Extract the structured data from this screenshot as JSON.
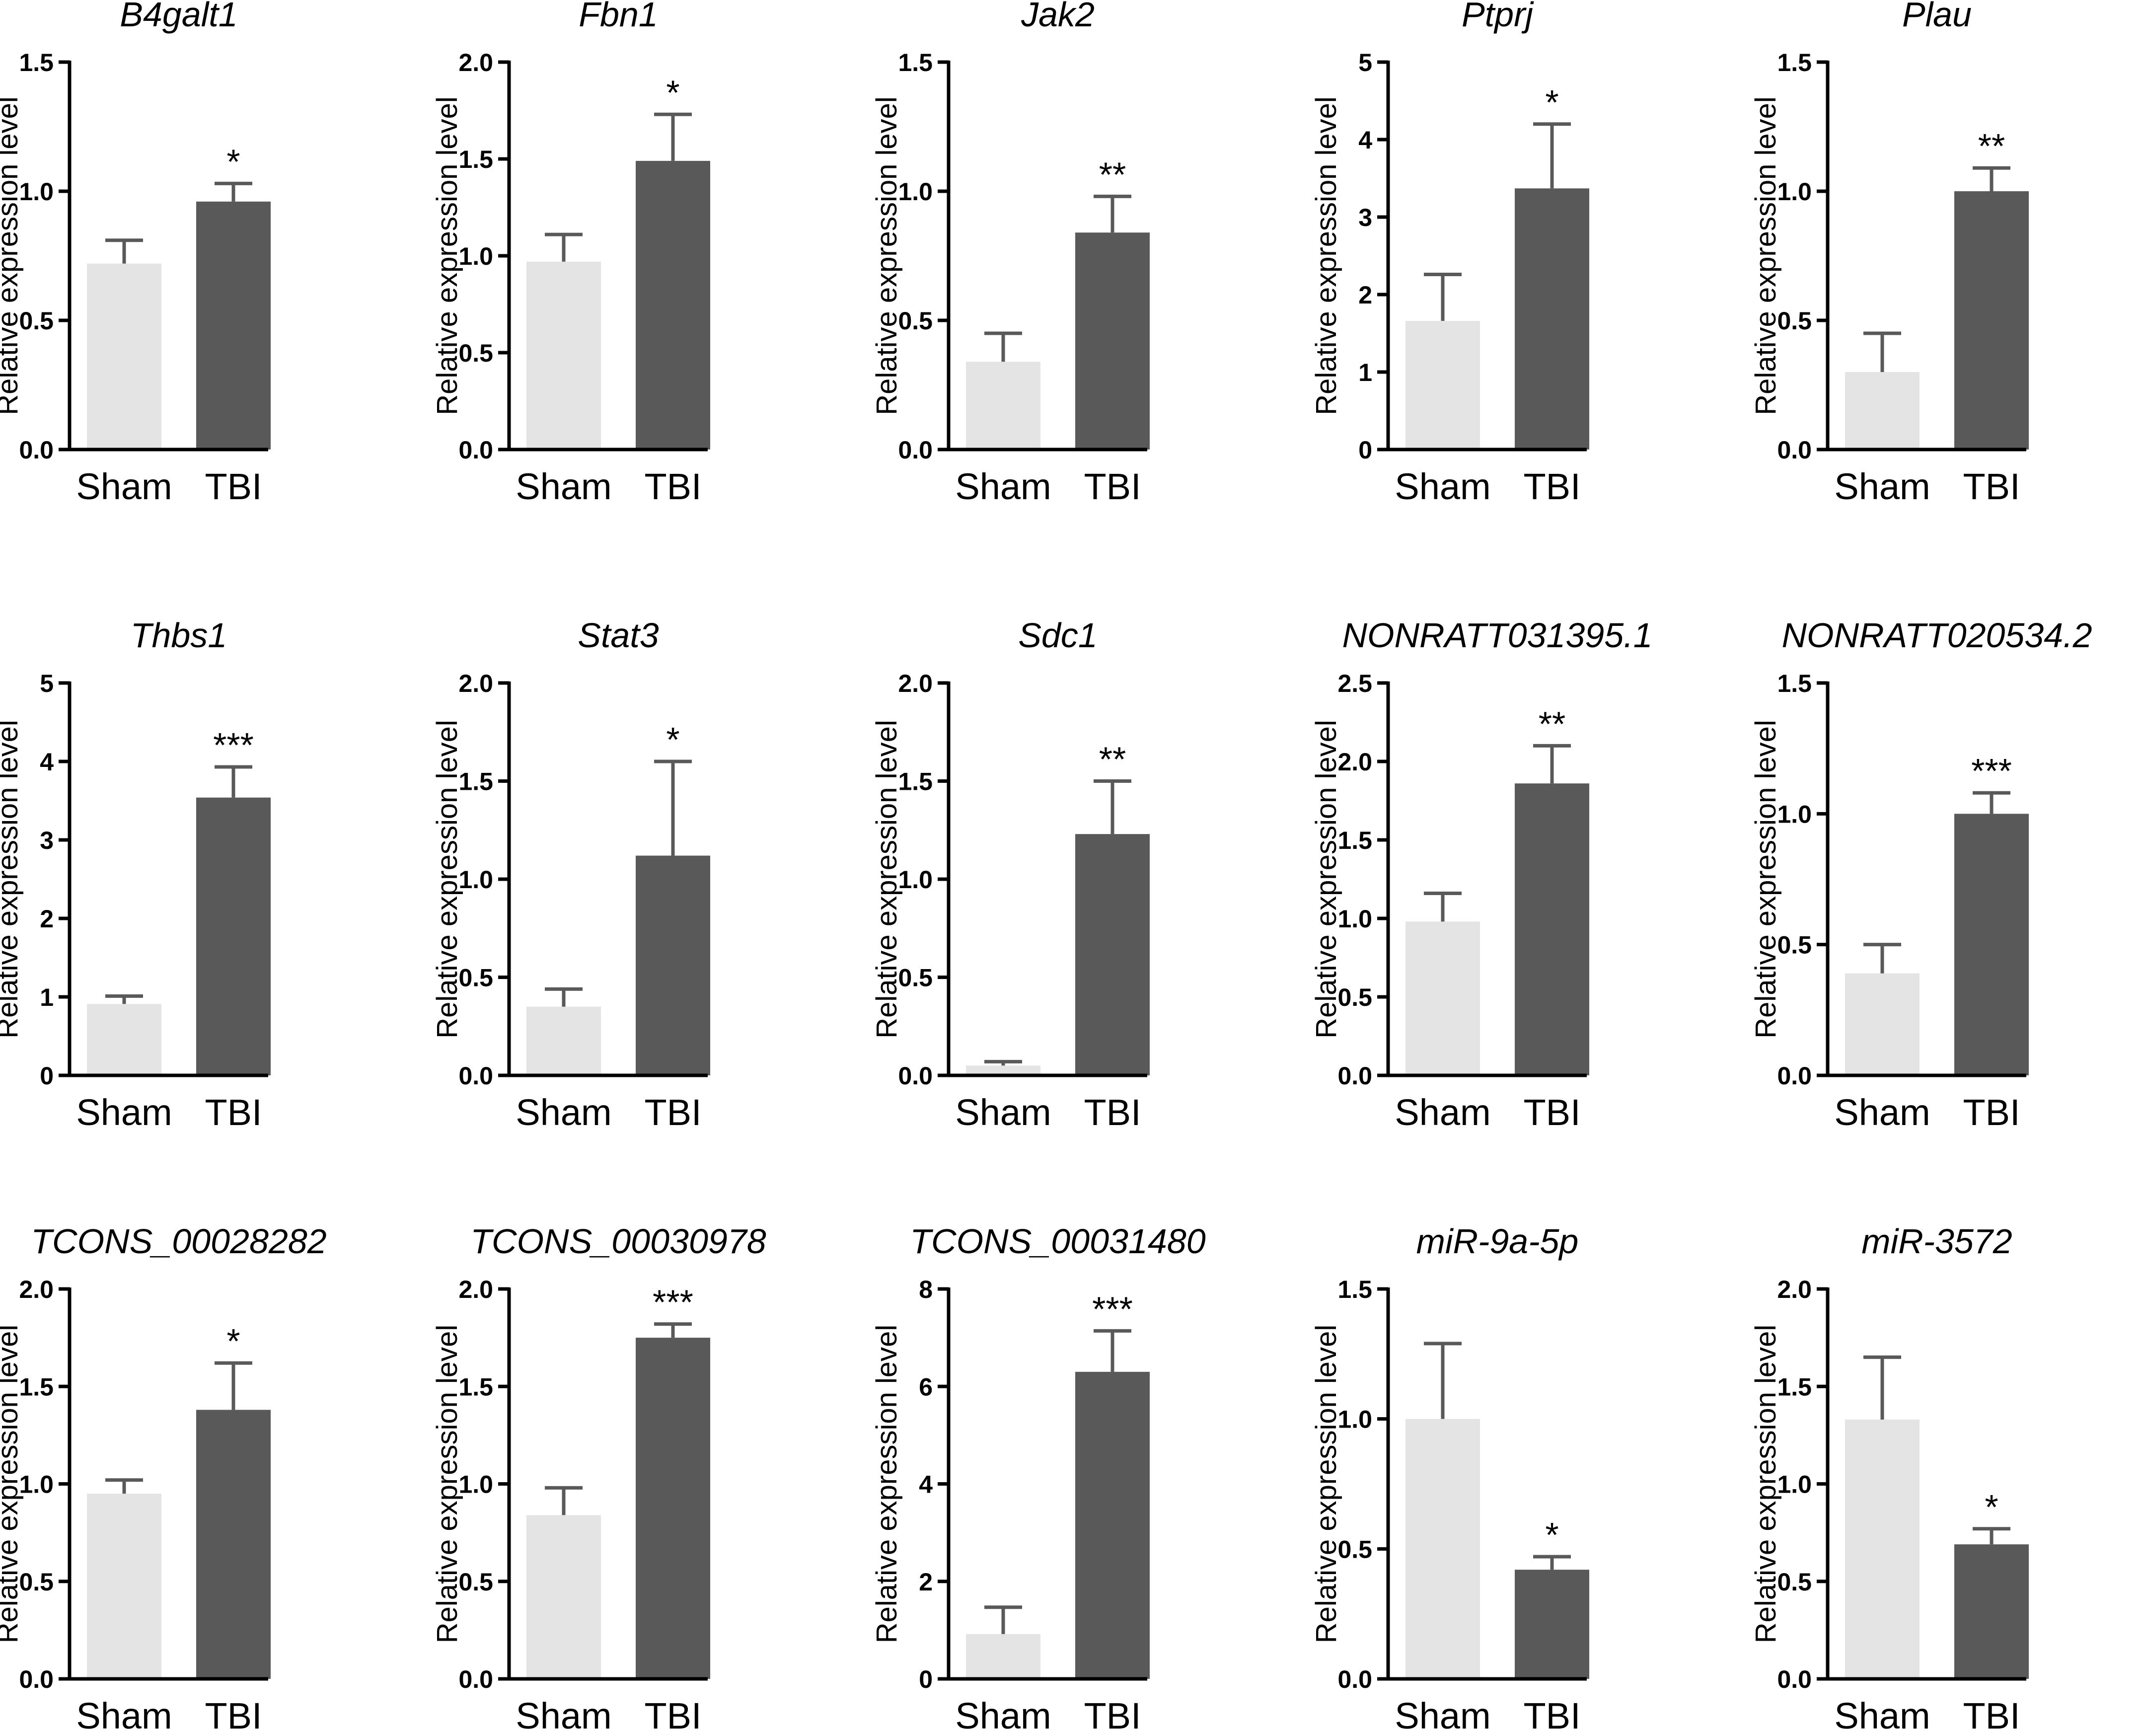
{
  "colors": {
    "sham": "#e4e4e4",
    "tbi": "#595959",
    "axis": "#000000"
  },
  "chart_data": [
    {
      "type": "bar",
      "title": "B4galt1",
      "ylabel": "Relative expression level",
      "xlabel": "",
      "categories": [
        "Sham",
        "TBI"
      ],
      "values": [
        0.72,
        0.96
      ],
      "errors": [
        0.09,
        0.07
      ],
      "ylim": [
        0,
        1.5
      ],
      "yticks": [
        0.0,
        0.5,
        1.0,
        1.5
      ],
      "tick_labels": [
        "0.0",
        "0.5",
        "1.0",
        "1.5"
      ],
      "significance": "*"
    },
    {
      "type": "bar",
      "title": "Fbn1",
      "ylabel": "Relative expression level",
      "xlabel": "",
      "categories": [
        "Sham",
        "TBI"
      ],
      "values": [
        0.97,
        1.49
      ],
      "errors": [
        0.14,
        0.24
      ],
      "ylim": [
        0,
        2.0
      ],
      "yticks": [
        0.0,
        0.5,
        1.0,
        1.5,
        2.0
      ],
      "tick_labels": [
        "0.0",
        "0.5",
        "1.0",
        "1.5",
        "2.0"
      ],
      "significance": "*"
    },
    {
      "type": "bar",
      "title": "Jak2",
      "ylabel": "Relative expression level",
      "xlabel": "",
      "categories": [
        "Sham",
        "TBI"
      ],
      "values": [
        0.34,
        0.84
      ],
      "errors": [
        0.11,
        0.14
      ],
      "ylim": [
        0,
        1.5
      ],
      "yticks": [
        0.0,
        0.5,
        1.0,
        1.5
      ],
      "tick_labels": [
        "0.0",
        "0.5",
        "1.0",
        "1.5"
      ],
      "significance": "**"
    },
    {
      "type": "bar",
      "title": "Ptprj",
      "ylabel": "Relative expression level",
      "xlabel": "",
      "categories": [
        "Sham",
        "TBI"
      ],
      "values": [
        1.66,
        3.37
      ],
      "errors": [
        0.6,
        0.83
      ],
      "ylim": [
        0,
        5
      ],
      "yticks": [
        0,
        1,
        2,
        3,
        4,
        5
      ],
      "tick_labels": [
        "0",
        "1",
        "2",
        "3",
        "4",
        "5"
      ],
      "significance": "*"
    },
    {
      "type": "bar",
      "title": "Plau",
      "ylabel": "Relative expression level",
      "xlabel": "",
      "categories": [
        "Sham",
        "TBI"
      ],
      "values": [
        0.3,
        1.0
      ],
      "errors": [
        0.15,
        0.09
      ],
      "ylim": [
        0,
        1.5
      ],
      "yticks": [
        0.0,
        0.5,
        1.0,
        1.5
      ],
      "tick_labels": [
        "0.0",
        "0.5",
        "1.0",
        "1.5"
      ],
      "significance": "**"
    },
    {
      "type": "bar",
      "title": "Thbs1",
      "ylabel": "Relative expression level",
      "xlabel": "",
      "categories": [
        "Sham",
        "TBI"
      ],
      "values": [
        0.91,
        3.54
      ],
      "errors": [
        0.1,
        0.39
      ],
      "ylim": [
        0,
        5
      ],
      "yticks": [
        0,
        1,
        2,
        3,
        4,
        5
      ],
      "tick_labels": [
        "0",
        "1",
        "2",
        "3",
        "4",
        "5"
      ],
      "significance": "***"
    },
    {
      "type": "bar",
      "title": "Stat3",
      "ylabel": "Relative expression level",
      "xlabel": "",
      "categories": [
        "Sham",
        "TBI"
      ],
      "values": [
        0.35,
        1.12
      ],
      "errors": [
        0.09,
        0.48
      ],
      "ylim": [
        0,
        2.0
      ],
      "yticks": [
        0.0,
        0.5,
        1.0,
        1.5,
        2.0
      ],
      "tick_labels": [
        "0.0",
        "0.5",
        "1.0",
        "1.5",
        "2.0"
      ],
      "significance": "*"
    },
    {
      "type": "bar",
      "title": "Sdc1",
      "ylabel": "Relative expression level",
      "xlabel": "",
      "categories": [
        "Sham",
        "TBI"
      ],
      "values": [
        0.05,
        1.23
      ],
      "errors": [
        0.02,
        0.27
      ],
      "ylim": [
        0,
        2.0
      ],
      "yticks": [
        0.0,
        0.5,
        1.0,
        1.5,
        2.0
      ],
      "tick_labels": [
        "0.0",
        "0.5",
        "1.0",
        "1.5",
        "2.0"
      ],
      "significance": "**"
    },
    {
      "type": "bar",
      "title": "NONRATT031395.1",
      "ylabel": "Relative expression level",
      "xlabel": "",
      "categories": [
        "Sham",
        "TBI"
      ],
      "values": [
        0.98,
        1.86
      ],
      "errors": [
        0.18,
        0.24
      ],
      "ylim": [
        0,
        2.5
      ],
      "yticks": [
        0.0,
        0.5,
        1.0,
        1.5,
        2.0,
        2.5
      ],
      "tick_labels": [
        "0.0",
        "0.5",
        "1.0",
        "1.5",
        "2.0",
        "2.5"
      ],
      "significance": "**"
    },
    {
      "type": "bar",
      "title": "NONRATT020534.2",
      "ylabel": "Relative expression level",
      "xlabel": "",
      "categories": [
        "Sham",
        "TBI"
      ],
      "values": [
        0.39,
        1.0
      ],
      "errors": [
        0.11,
        0.08
      ],
      "ylim": [
        0,
        1.5
      ],
      "yticks": [
        0.0,
        0.5,
        1.0,
        1.5
      ],
      "tick_labels": [
        "0.0",
        "0.5",
        "1.0",
        "1.5"
      ],
      "significance": "***"
    },
    {
      "type": "bar",
      "title": "TCONS_00028282",
      "ylabel": "Relative expression level",
      "xlabel": "",
      "categories": [
        "Sham",
        "TBI"
      ],
      "values": [
        0.95,
        1.38
      ],
      "errors": [
        0.07,
        0.24
      ],
      "ylim": [
        0,
        2.0
      ],
      "yticks": [
        0.0,
        0.5,
        1.0,
        1.5,
        2.0
      ],
      "tick_labels": [
        "0.0",
        "0.5",
        "1.0",
        "1.5",
        "2.0"
      ],
      "significance": "*"
    },
    {
      "type": "bar",
      "title": "TCONS_00030978",
      "ylabel": "Relative expression level",
      "xlabel": "",
      "categories": [
        "Sham",
        "TBI"
      ],
      "values": [
        0.84,
        1.75
      ],
      "errors": [
        0.14,
        0.07
      ],
      "ylim": [
        0,
        2.0
      ],
      "yticks": [
        0.0,
        0.5,
        1.0,
        1.5,
        2.0
      ],
      "tick_labels": [
        "0.0",
        "0.5",
        "1.0",
        "1.5",
        "2.0"
      ],
      "significance": "***"
    },
    {
      "type": "bar",
      "title": "TCONS_00031480",
      "ylabel": "Relative expression level",
      "xlabel": "",
      "categories": [
        "Sham",
        "TBI"
      ],
      "values": [
        0.92,
        6.3
      ],
      "errors": [
        0.55,
        0.84
      ],
      "ylim": [
        0,
        8
      ],
      "yticks": [
        0,
        2,
        4,
        6,
        8
      ],
      "tick_labels": [
        "0",
        "2",
        "4",
        "6",
        "8"
      ],
      "significance": "***"
    },
    {
      "type": "bar",
      "title": "miR-9a-5p",
      "ylabel": "Relative expression level",
      "xlabel": "",
      "categories": [
        "Sham",
        "TBI"
      ],
      "values": [
        1.0,
        0.42
      ],
      "errors": [
        0.29,
        0.05
      ],
      "ylim": [
        0,
        1.5
      ],
      "yticks": [
        0.0,
        0.5,
        1.0,
        1.5
      ],
      "tick_labels": [
        "0.0",
        "0.5",
        "1.0",
        "1.5"
      ],
      "significance": "*"
    },
    {
      "type": "bar",
      "title": "miR-3572",
      "ylabel": "Relative expression level",
      "xlabel": "",
      "categories": [
        "Sham",
        "TBI"
      ],
      "values": [
        1.33,
        0.69
      ],
      "errors": [
        0.32,
        0.08
      ],
      "ylim": [
        0,
        2.0
      ],
      "yticks": [
        0.0,
        0.5,
        1.0,
        1.5,
        2.0
      ],
      "tick_labels": [
        "0.0",
        "0.5",
        "1.0",
        "1.5",
        "2.0"
      ],
      "significance": "*"
    }
  ]
}
